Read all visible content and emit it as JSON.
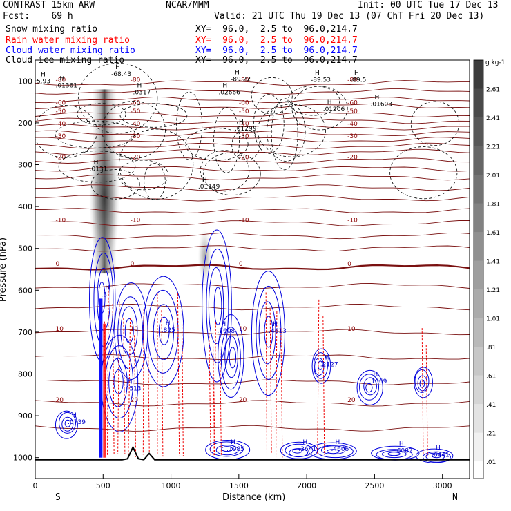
{
  "header": {
    "line1_left": "CONTRAST 15km ARW",
    "line1_center": "NCAR/MMM",
    "line1_right": "Init: 00 UTC Tue 17 Dec 13",
    "line2_left": "Fcst:    69 h",
    "line2_right": "Valid: 21 UTC Thu 19 Dec 13 (07 ChT Fri 20 Dec 13)",
    "fields": [
      {
        "name": "Snow mixing ratio",
        "xy": "XY=  96.0,  2.5 to  96.0,214.7",
        "color": "#000000"
      },
      {
        "name": "Rain water mixing ratio",
        "xy": "XY=  96.0,  2.5 to  96.0,214.7",
        "color": "#ff0000"
      },
      {
        "name": "Cloud water mixing ratio",
        "xy": "XY=  96.0,  2.5 to  96.0,214.7",
        "color": "#0000ff"
      },
      {
        "name": "Cloud ice mixing ratio",
        "xy": "XY=  96.0,  2.5 to  96.0,214.7",
        "color": "#000000"
      }
    ]
  },
  "chart_data": {
    "type": "contour",
    "xlabel": "Distance (km)",
    "ylabel": "Pressure (hPa)",
    "xlim": [
      0,
      3200
    ],
    "ylim": [
      1050,
      50
    ],
    "x_ticks": [
      0,
      500,
      1000,
      1500,
      2000,
      2500,
      3000
    ],
    "y_ticks": [
      100,
      200,
      300,
      400,
      500,
      600,
      700,
      800,
      900,
      1000
    ],
    "x_end_labels": {
      "left": "S",
      "right": "N"
    },
    "colorbar": {
      "unit": "g kg-1",
      "ticks": [
        "2.61",
        "2.41",
        "2.21",
        "2.01",
        "1.81",
        "1.61",
        "1.41",
        "1.21",
        "1.01",
        ".81",
        ".61",
        ".41",
        ".21",
        ".01"
      ]
    },
    "temperature_isotherms": [
      {
        "label": "-80",
        "p": 105
      },
      {
        "label": "-60",
        "p": 160
      },
      {
        "label": "-50",
        "p": 180
      },
      {
        "label": "-40",
        "p": 210
      },
      {
        "label": "-30",
        "p": 240
      },
      {
        "label": "-20",
        "p": 290
      },
      {
        "label": "-10",
        "p": 440
      },
      {
        "label": "0",
        "p": 545
      },
      {
        "label": "10",
        "p": 700
      },
      {
        "label": "20",
        "p": 870
      }
    ],
    "extremum_labels": [
      {
        "text": "-68.43",
        "x": 560,
        "p": 88
      },
      {
        "text": "-89.22",
        "x": 1440,
        "p": 100
      },
      {
        "text": "-89.53",
        "x": 2030,
        "p": 102
      },
      {
        "text": "-89.5",
        "x": 2320,
        "p": 102
      },
      {
        "text": "5.93",
        "x": 10,
        "p": 105
      },
      {
        "text": ".01361",
        "x": 150,
        "p": 115
      },
      {
        "text": ".0317",
        "x": 720,
        "p": 132
      },
      {
        "text": ".02666",
        "x": 1350,
        "p": 132
      },
      {
        "text": ".01206",
        "x": 2120,
        "p": 172
      },
      {
        "text": ".01603",
        "x": 2470,
        "p": 160
      },
      {
        "text": ".01299",
        "x": 1470,
        "p": 218
      },
      {
        "text": ".0131",
        "x": 400,
        "p": 315
      },
      {
        "text": ".01149",
        "x": 1200,
        "p": 357
      },
      {
        "text": ".3",
        "x": 485,
        "p": 615
      },
      {
        "text": ".825",
        "x": 930,
        "p": 700
      },
      {
        "text": ".7608",
        "x": 1340,
        "p": 702
      },
      {
        "text": ".4613",
        "x": 1720,
        "p": 702
      },
      {
        "text": ".4513",
        "x": 650,
        "p": 840
      },
      {
        "text": ".0739",
        "x": 240,
        "p": 920
      },
      {
        "text": ".1985",
        "x": 1410,
        "p": 984
      },
      {
        "text": ".3641",
        "x": 1940,
        "p": 984
      },
      {
        "text": ".4606",
        "x": 2180,
        "p": 984
      },
      {
        "text": ".6087",
        "x": 2650,
        "p": 988
      },
      {
        "text": ".6441",
        "x": 2920,
        "p": 998
      },
      {
        "text": ".2127",
        "x": 2100,
        "p": 782
      },
      {
        "text": ".1069",
        "x": 2460,
        "p": 822
      }
    ]
  }
}
